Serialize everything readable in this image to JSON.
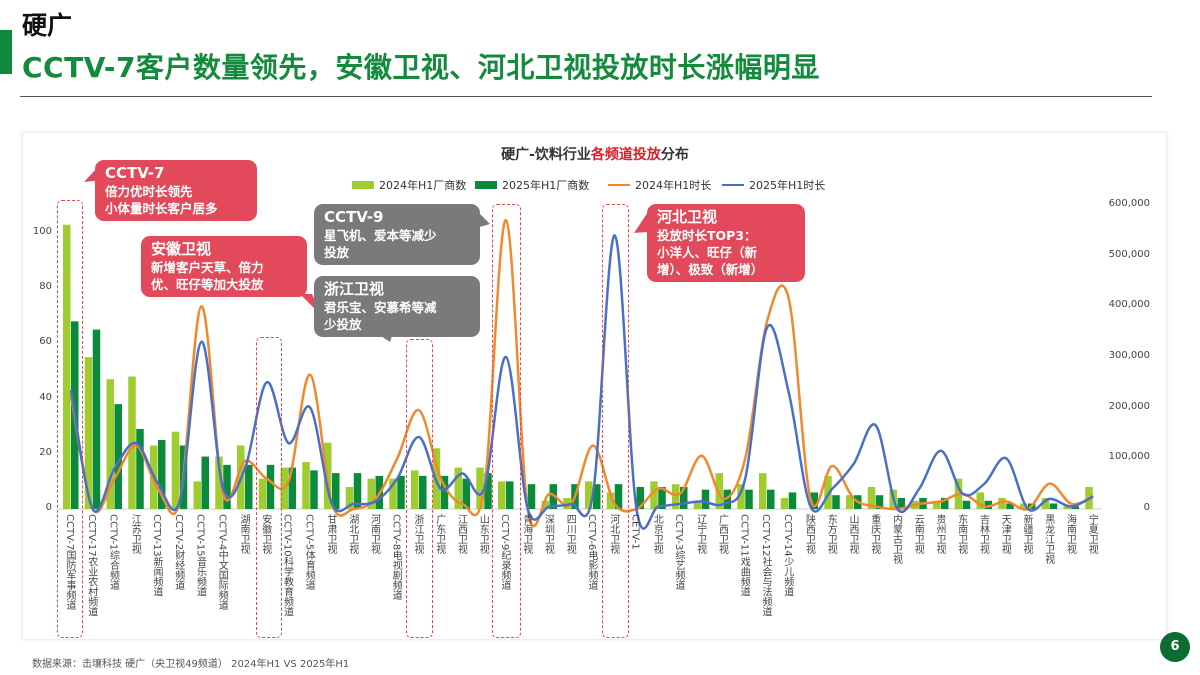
{
  "header": {
    "category": "硬广",
    "title": "CCTV-7客户数量领先，安徽卫视、河北卫视投放时长涨幅明显"
  },
  "footer": {
    "source": "数据来源：击壤科技 硬广（央卫视49频道） 2024年H1 VS 2025年H1",
    "page": "6"
  },
  "colors": {
    "green_2024": "#9fcd2f",
    "green_2025": "#0b8a3c",
    "orange_2024": "#f0892e",
    "blue_2025": "#4a6fc8",
    "brand": "#138a3c"
  },
  "callouts": [
    {
      "title": "CCTV-7",
      "lines": [
        "倍力优时长领先",
        "小体量时长客户居多"
      ]
    },
    {
      "title": "安徽卫视",
      "lines": [
        "新增客户天草、倍力",
        "优、旺仔等加大投放"
      ]
    },
    {
      "title": "CCTV-9",
      "lines": [
        "星飞机、爱本等减少",
        "投放"
      ]
    },
    {
      "title": "浙江卫视",
      "lines": [
        "君乐宝、安慕希等减",
        "少投放"
      ]
    },
    {
      "title": "河北卫视",
      "lines": [
        "投放时长TOP3：",
        "小洋人、旺仔（新",
        "增）、极致（新增）"
      ]
    }
  ],
  "chart_data": {
    "type": "bar+line",
    "title_pre": "硬广-饮料行业",
    "title_hl": "各频道投放",
    "title_post": "分布",
    "legend": [
      "2024年H1厂商数",
      "2025年H1厂商数",
      "2024年H1时长",
      "2025年H1时长"
    ],
    "legend_position": "top",
    "y_left": {
      "range": [
        0,
        110
      ],
      "ticks": [
        "0",
        "20",
        "40",
        "60",
        "80",
        "100"
      ]
    },
    "y_right": {
      "range": [
        0,
        600000
      ],
      "ticks": [
        "0",
        "100,000",
        "200,000",
        "300,000",
        "400,000",
        "500,000",
        "600,000"
      ]
    },
    "categories": [
      "CCTV-7国防军事频道",
      "CCTV-17农业农村频道",
      "CCTV-1综合频道",
      "江苏卫视",
      "CCTV-13新闻频道",
      "CCTV-2财经频道",
      "CCTV-15音乐频道",
      "CCTV-4中文国际频道",
      "湖南卫视",
      "安徽卫视",
      "CCTV-10科学教育频道",
      "CCTV-5体育频道",
      "甘肃卫视",
      "湖北卫视",
      "河南卫视",
      "CCTV-8电视剧频道",
      "浙江卫视",
      "广东卫视",
      "江西卫视",
      "山东卫视",
      "CCTV-9纪录频道",
      "青海卫视",
      "深圳卫视",
      "四川卫视",
      "CCTV-6电影频道",
      "河北卫视",
      "CETV-1",
      "北京卫视",
      "CCTV-3综艺频道",
      "辽宁卫视",
      "广西卫视",
      "CCTV-11戏曲频道",
      "CCTV-12社会与法频道",
      "CCTV-14少儿频道",
      "陕西卫视",
      "东方卫视",
      "山西卫视",
      "重庆卫视",
      "内蒙古卫视",
      "云南卫视",
      "贵州卫视",
      "东南卫视",
      "吉林卫视",
      "天津卫视",
      "新疆卫视",
      "黑龙江卫视",
      "海南卫视",
      "宁夏卫视"
    ],
    "highlighted": [
      "CCTV-7国防军事频道",
      "安徽卫视",
      "浙江卫视",
      "CCTV-9纪录频道",
      "河北卫视"
    ],
    "series": [
      {
        "name": "2024年H1厂商数",
        "axis": "left",
        "kind": "bar",
        "values": [
          103,
          55,
          47,
          48,
          23,
          28,
          10,
          19,
          23,
          11,
          15,
          17,
          24,
          8,
          11,
          11,
          14,
          22,
          15,
          15,
          10,
          0,
          3,
          4,
          10,
          6,
          0,
          10,
          9,
          3,
          13,
          9,
          13,
          4,
          0,
          12,
          5,
          8,
          7,
          3,
          3,
          11,
          6,
          4,
          2,
          4,
          1,
          8
        ]
      },
      {
        "name": "2025年H1厂商数",
        "axis": "left",
        "kind": "bar",
        "values": [
          68,
          65,
          38,
          29,
          25,
          23,
          19,
          16,
          16,
          16,
          15,
          14,
          13,
          13,
          12,
          12,
          12,
          12,
          11,
          13,
          10,
          9,
          9,
          9,
          9,
          9,
          8,
          8,
          8,
          7,
          7,
          7,
          7,
          6,
          6,
          5,
          5,
          5,
          4,
          4,
          4,
          3,
          3,
          2,
          2,
          2,
          1,
          0
        ]
      },
      {
        "name": "2024年H1时长",
        "axis": "right",
        "kind": "line",
        "values": [
          225000,
          0,
          60000,
          125000,
          40000,
          15000,
          400000,
          30000,
          95000,
          60000,
          55000,
          265000,
          10000,
          0,
          20000,
          100000,
          195000,
          60000,
          10000,
          40000,
          570000,
          0,
          30000,
          10000,
          125000,
          10000,
          0,
          40000,
          30000,
          105000,
          20000,
          100000,
          370000,
          415000,
          20000,
          85000,
          20000,
          5000,
          0,
          10000,
          15000,
          30000,
          5000,
          15000,
          0,
          50000,
          10000,
          25000
        ]
      },
      {
        "name": "2025年H1时长",
        "axis": "right",
        "kind": "line",
        "values": [
          235000,
          0,
          80000,
          130000,
          50000,
          15000,
          330000,
          40000,
          80000,
          250000,
          130000,
          200000,
          10000,
          10000,
          15000,
          60000,
          142000,
          40000,
          70000,
          40000,
          300000,
          0,
          5000,
          10000,
          30000,
          540000,
          0,
          5000,
          10000,
          15000,
          10000,
          60000,
          358000,
          230000,
          5000,
          40000,
          90000,
          165000,
          0,
          40000,
          115000,
          30000,
          50000,
          100000,
          0,
          20000,
          5000,
          25000
        ]
      }
    ]
  }
}
